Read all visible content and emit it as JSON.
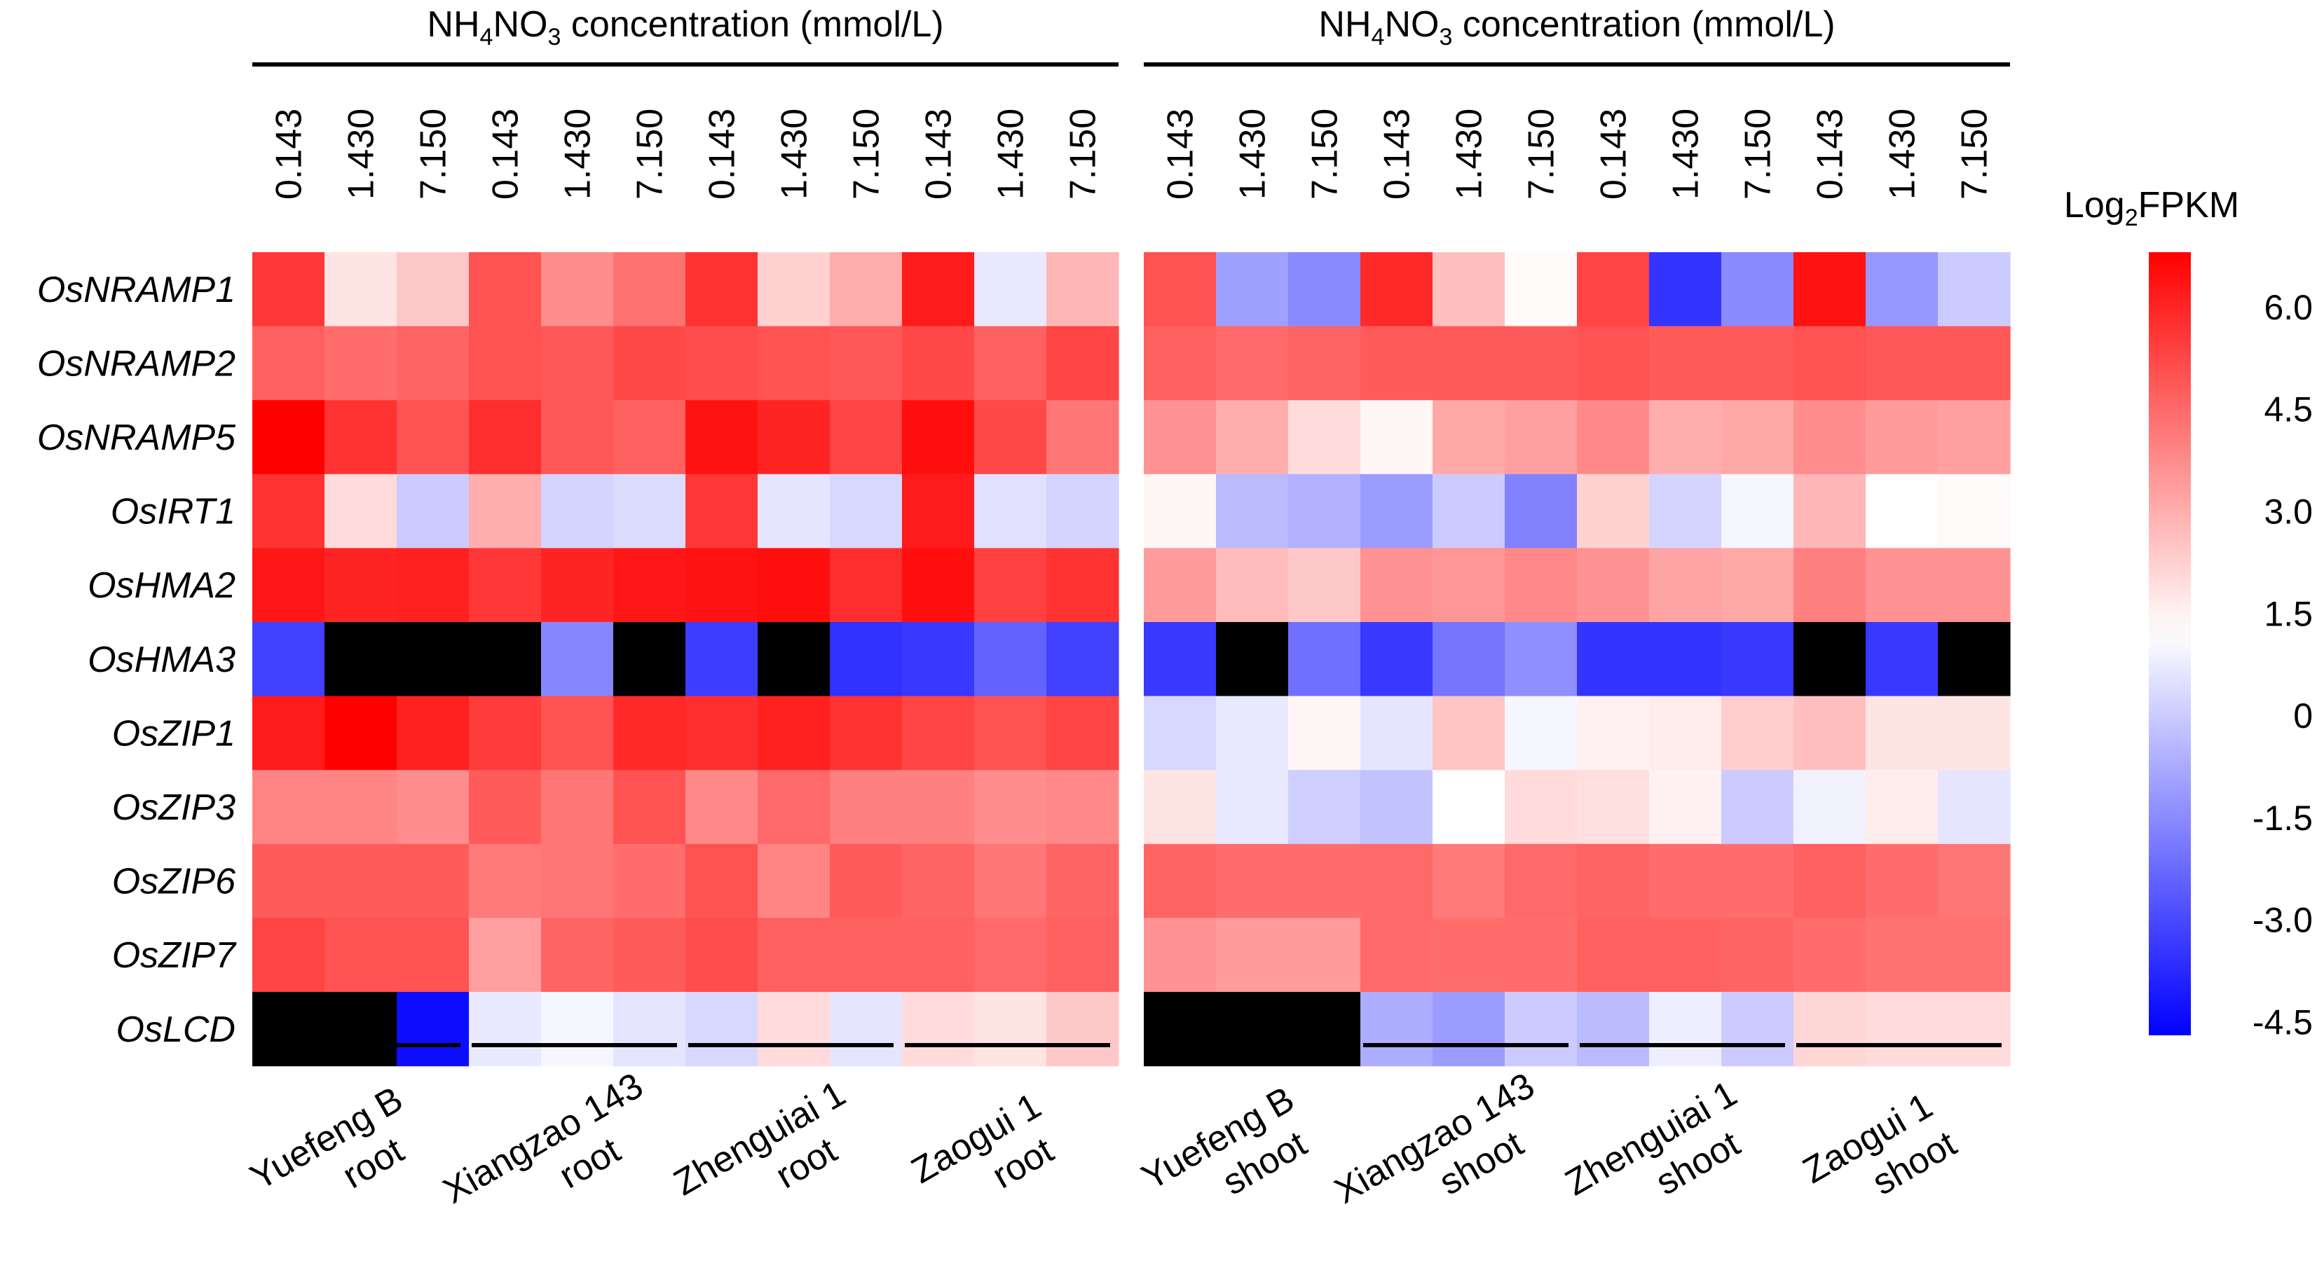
{
  "chart_data": {
    "type": "heatmap",
    "panel_header": {
      "base": "NH",
      "sub1": "4",
      "mid": "NO",
      "sub2": "3",
      "rest": " concentration (mmol/L)"
    },
    "concentrations": [
      "0.143",
      "1.430",
      "7.150"
    ],
    "genes": [
      "OsNRAMP1",
      "OsNRAMP2",
      "OsNRAMP5",
      "OsIRT1",
      "OsHMA2",
      "OsHMA3",
      "OsZIP1",
      "OsZIP3",
      "OsZIP6",
      "OsZIP7",
      "OsLCD"
    ],
    "panels": [
      {
        "name": "root",
        "groups": [
          {
            "line1": "Yuefeng B",
            "line2": "root"
          },
          {
            "line1": "Xiangzao 143",
            "line2": "root"
          },
          {
            "line1": "Zhenguiai 1",
            "line2": "root"
          },
          {
            "line1": "Zaogui 1",
            "line2": "root"
          }
        ],
        "values": [
          [
            5.6,
            1.8,
            2.4,
            5.0,
            3.7,
            4.3,
            5.7,
            2.2,
            3.0,
            6.2,
            0.7,
            2.8
          ],
          [
            4.7,
            4.4,
            4.6,
            5.0,
            4.9,
            5.2,
            5.1,
            5.0,
            4.9,
            5.2,
            4.7,
            5.3
          ],
          [
            7.0,
            5.7,
            5.0,
            5.8,
            4.9,
            4.7,
            6.4,
            6.0,
            5.3,
            6.5,
            5.2,
            4.2
          ],
          [
            5.7,
            2.0,
            0.0,
            3.0,
            0.2,
            0.4,
            5.6,
            0.6,
            0.3,
            6.2,
            0.5,
            0.2
          ],
          [
            6.3,
            6.0,
            6.1,
            5.6,
            6.0,
            6.3,
            6.4,
            6.5,
            5.8,
            6.5,
            5.4,
            5.7
          ],
          [
            -3.2,
            null,
            null,
            null,
            -1.6,
            null,
            -3.3,
            null,
            -3.6,
            -3.4,
            -2.4,
            -3.2
          ],
          [
            6.2,
            6.9,
            6.1,
            5.5,
            5.0,
            5.9,
            5.8,
            6.1,
            5.7,
            5.3,
            5.0,
            5.3
          ],
          [
            3.9,
            3.9,
            3.7,
            4.8,
            4.2,
            5.0,
            3.8,
            4.5,
            4.0,
            4.0,
            3.7,
            3.8
          ],
          [
            4.8,
            4.8,
            4.8,
            4.1,
            4.2,
            4.4,
            5.0,
            3.9,
            4.8,
            4.6,
            4.2,
            4.6
          ],
          [
            5.3,
            5.0,
            5.0,
            3.3,
            4.6,
            4.8,
            5.1,
            4.7,
            4.7,
            4.7,
            4.5,
            4.7
          ],
          [
            null,
            null,
            -4.4,
            0.7,
            1.0,
            0.6,
            0.3,
            2.0,
            0.6,
            2.0,
            1.8,
            2.4
          ]
        ]
      },
      {
        "name": "shoot",
        "groups": [
          {
            "line1": "Yuefeng B",
            "line2": "shoot"
          },
          {
            "line1": "Xiangzao 143",
            "line2": "shoot"
          },
          {
            "line1": "Zhenguiai 1",
            "line2": "shoot"
          },
          {
            "line1": "Zaogui 1",
            "line2": "shoot"
          }
        ],
        "values": [
          [
            5.0,
            -1.0,
            -1.5,
            5.9,
            2.6,
            1.3,
            5.3,
            -3.5,
            -1.5,
            6.4,
            -1.2,
            0.0
          ],
          [
            4.7,
            4.5,
            4.6,
            4.8,
            4.8,
            4.8,
            5.0,
            4.8,
            4.8,
            5.0,
            4.9,
            4.9
          ],
          [
            3.6,
            3.0,
            2.0,
            1.4,
            3.1,
            3.3,
            3.8,
            3.0,
            3.1,
            3.7,
            3.4,
            3.3
          ],
          [
            1.4,
            -0.4,
            -0.6,
            -1.1,
            0.0,
            -1.7,
            2.2,
            0.2,
            1.0,
            2.8,
            1.2,
            1.3
          ],
          [
            3.4,
            2.7,
            2.4,
            3.6,
            3.5,
            3.8,
            3.6,
            3.2,
            3.1,
            4.0,
            3.6,
            3.6
          ],
          [
            -3.4,
            null,
            -2.1,
            -3.4,
            -2.0,
            -1.4,
            -3.5,
            -3.5,
            -3.4,
            null,
            -3.4,
            null
          ],
          [
            0.3,
            0.7,
            1.4,
            0.6,
            2.5,
            1.0,
            1.5,
            1.6,
            2.3,
            2.6,
            1.8,
            1.8
          ],
          [
            1.8,
            0.7,
            0.1,
            -0.2,
            1.2,
            2.0,
            1.9,
            1.5,
            0.0,
            0.9,
            1.6,
            0.6
          ],
          [
            4.6,
            4.4,
            4.4,
            4.5,
            4.1,
            4.5,
            4.6,
            4.4,
            4.4,
            4.7,
            4.4,
            4.2
          ],
          [
            3.6,
            3.4,
            3.4,
            4.5,
            4.4,
            4.4,
            4.7,
            4.7,
            4.6,
            4.4,
            4.3,
            4.3
          ],
          [
            null,
            null,
            null,
            -0.7,
            -1.1,
            0.0,
            -0.4,
            0.8,
            0.0,
            2.1,
            2.0,
            2.0
          ]
        ]
      }
    ],
    "legend": {
      "title_base": "Log",
      "title_sub": "2",
      "title_rest": "FPKM",
      "ticks": [
        "6.0",
        "4.5",
        "3.0",
        "1.5",
        "0",
        "-1.5",
        "-3.0",
        "-4.5"
      ],
      "tick_values": [
        6.0,
        4.5,
        3.0,
        1.5,
        0.0,
        -1.5,
        -3.0,
        -4.5
      ],
      "range": [
        -4.7,
        6.8
      ],
      "mid": 1.2,
      "colors": {
        "high": "#ff0000",
        "mid": "#ffffff",
        "low": "#0000ff",
        "missing": "#000000"
      }
    }
  }
}
